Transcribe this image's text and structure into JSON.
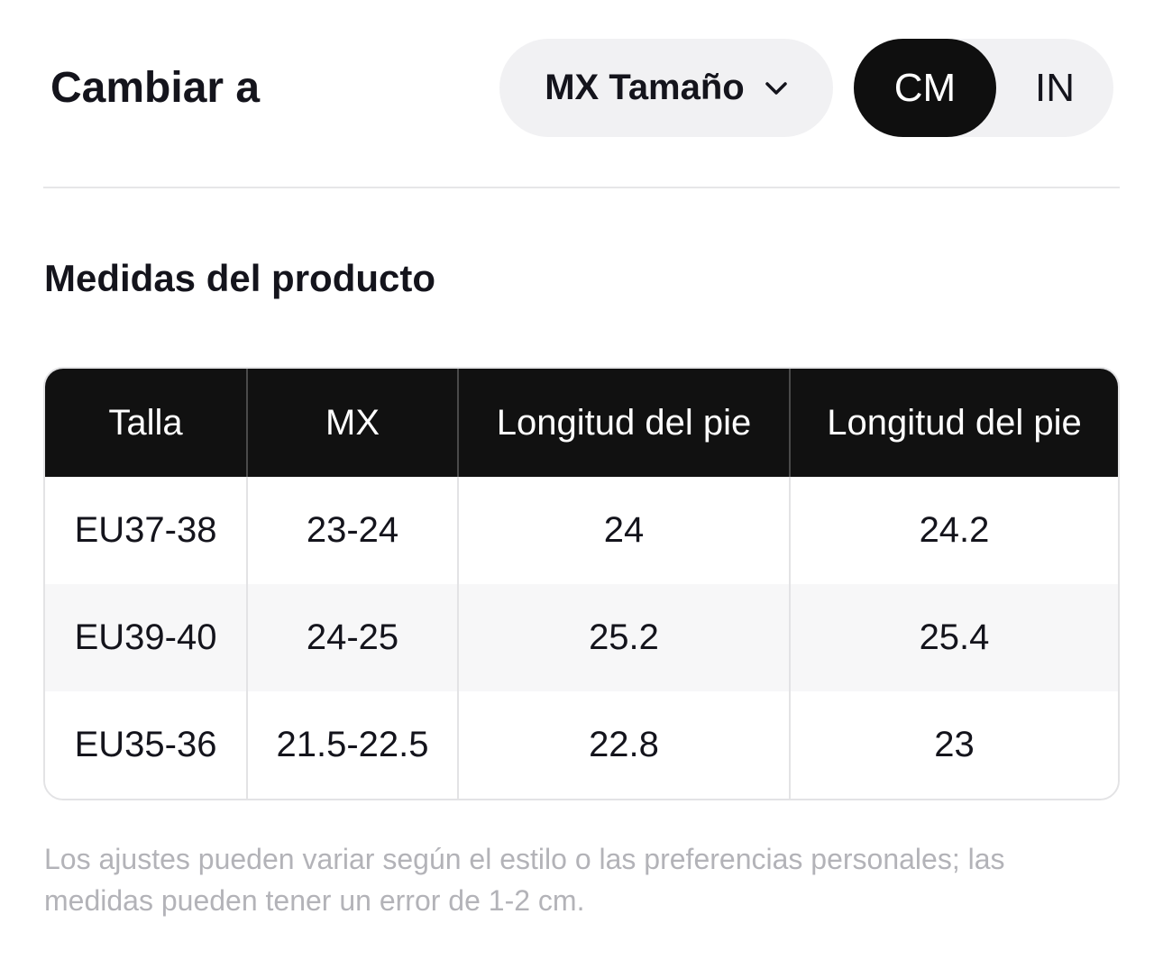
{
  "header": {
    "title": "Cambiar a",
    "size_select": {
      "value": "MX Tamaño",
      "icon": "chevron-down-icon"
    },
    "units": {
      "active": "CM",
      "inactive": "IN"
    }
  },
  "section_title": "Medidas del producto",
  "table": {
    "columns": [
      "Talla",
      "MX",
      "Longitud del pie",
      "Longitud del pie"
    ],
    "rows": [
      [
        "EU37-38",
        "23-24",
        "24",
        "24.2"
      ],
      [
        "EU39-40",
        "24-25",
        "25.2",
        "25.4"
      ],
      [
        "EU35-36",
        "21.5-22.5",
        "22.8",
        "23"
      ]
    ]
  },
  "footnote": "Los ajustes pueden variar según el estilo o las preferencias personales; las medidas pueden tener un error de 1-2 cm.",
  "colors": {
    "header_bg": "#111111",
    "pill_bg": "#f1f1f3",
    "active_unit_bg": "#0f0f0f",
    "footnote_text": "#b3b3b8"
  }
}
